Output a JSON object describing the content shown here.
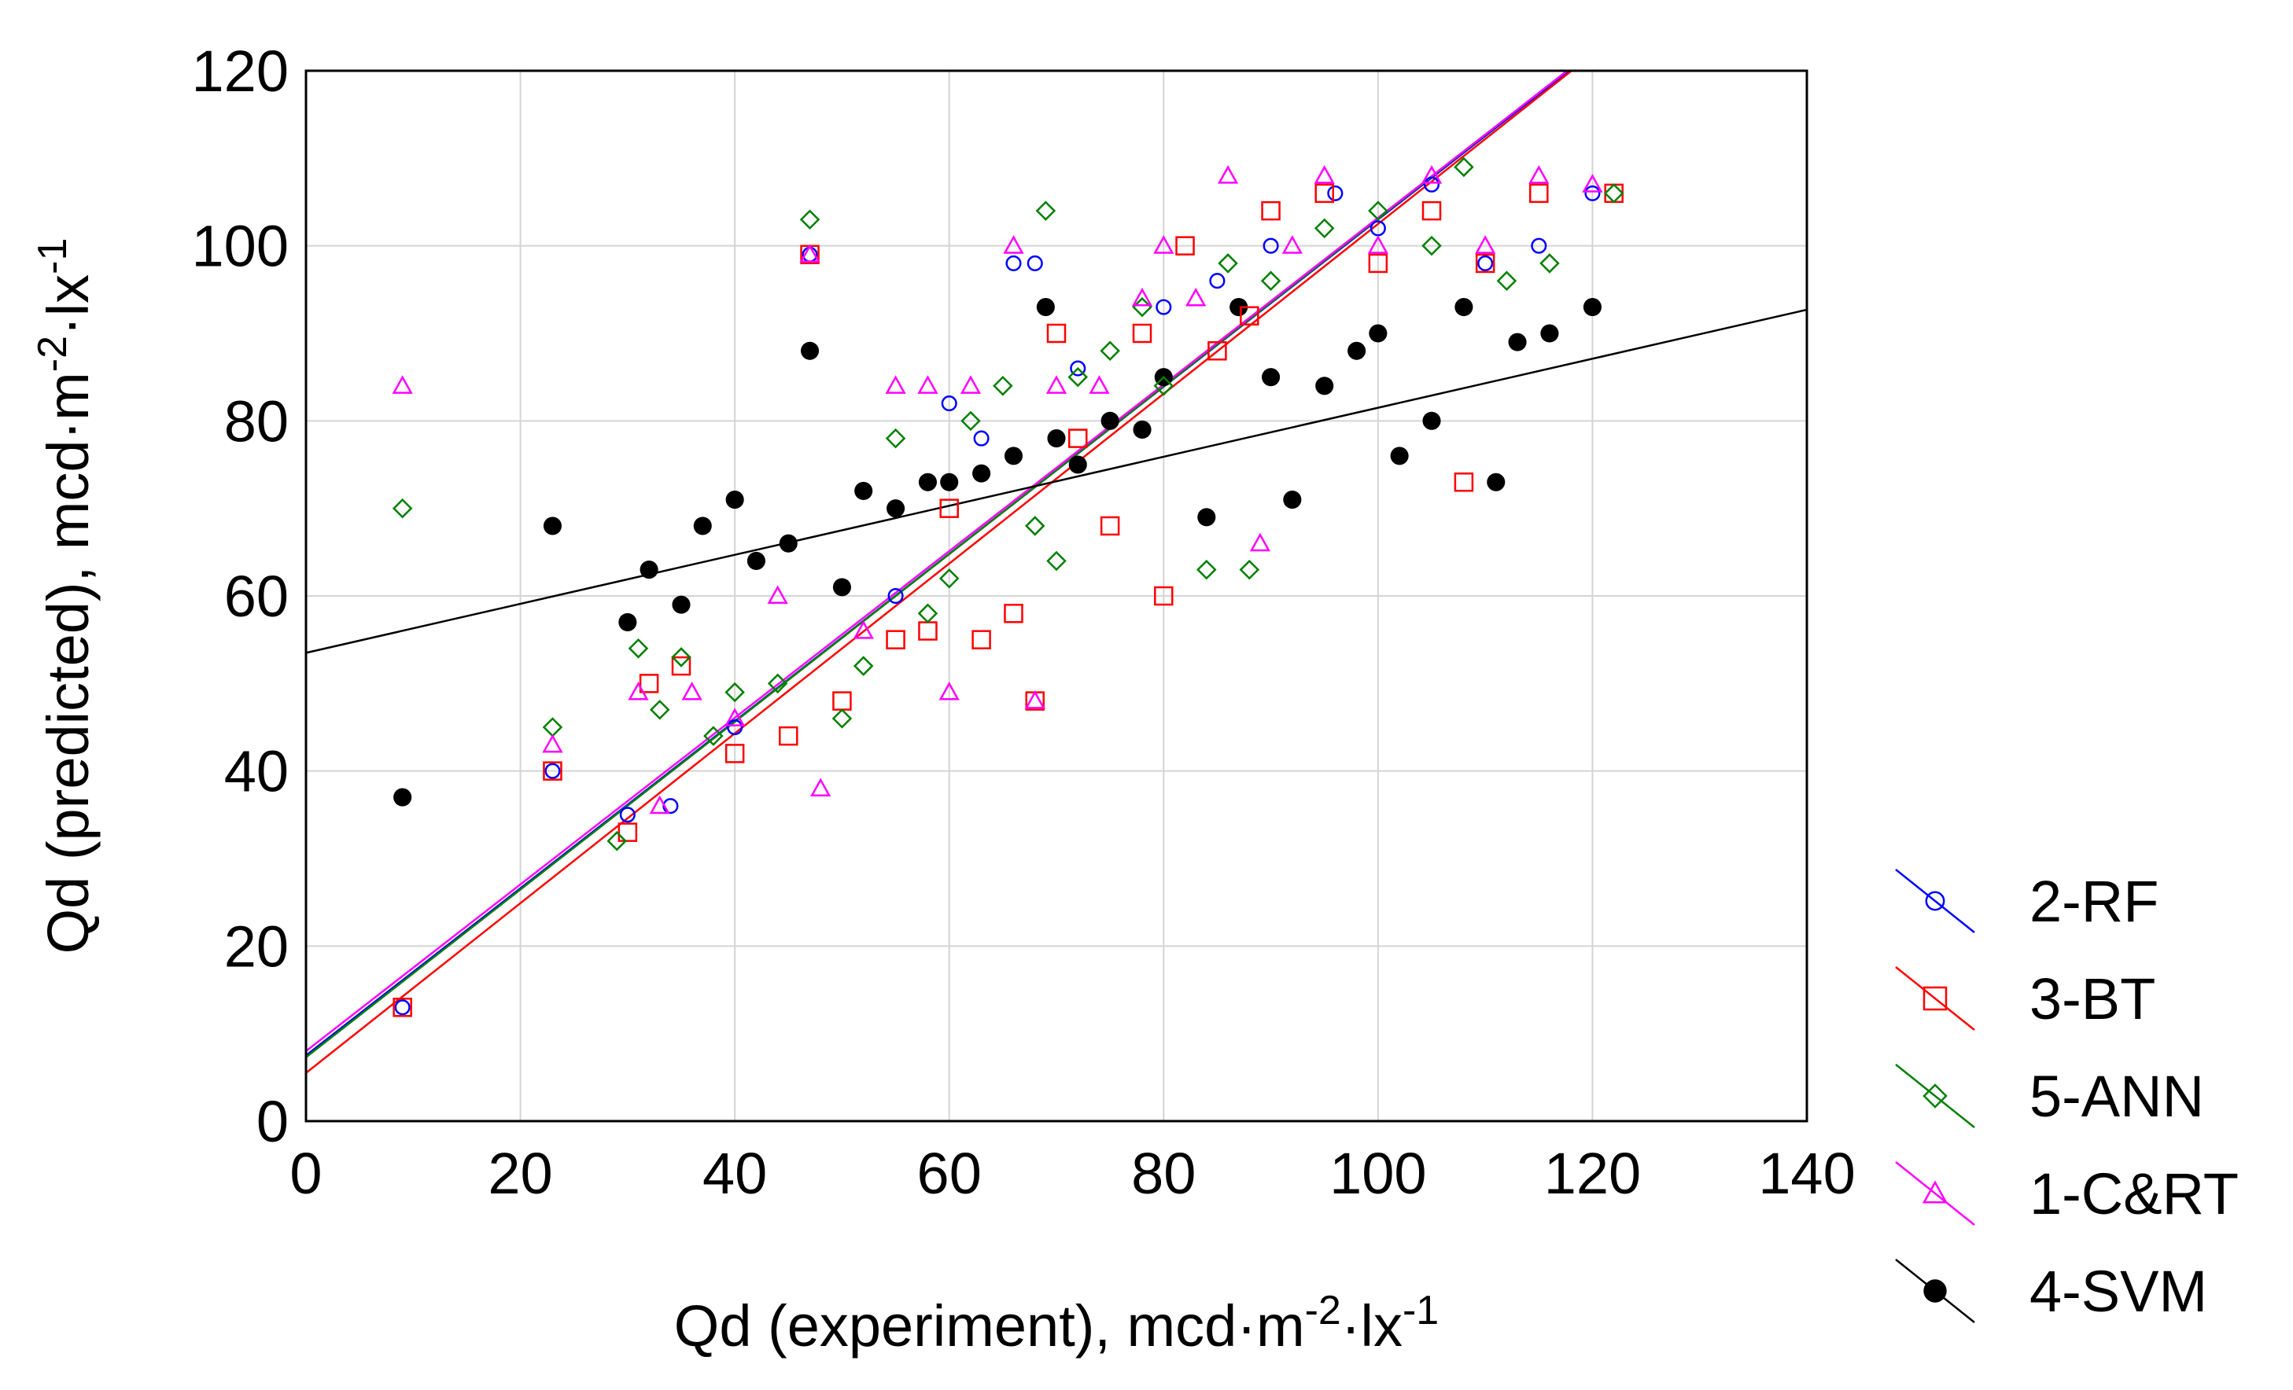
{
  "chart_data": {
    "type": "scatter",
    "xlabel": {
      "main": "Qd (experiment), mcd·m",
      "exp1": "-2",
      "mid": "·lx",
      "exp2": "-1"
    },
    "ylabel": {
      "main": "Qd (predicted), mcd·m",
      "exp1": "-2",
      "mid": "·lx",
      "exp2": "-1"
    },
    "xlim": [
      0,
      140
    ],
    "ylim": [
      0,
      120
    ],
    "xticks": [
      0,
      20,
      40,
      60,
      80,
      100,
      120,
      140
    ],
    "yticks": [
      0,
      20,
      40,
      60,
      80,
      100,
      120
    ],
    "grid": true,
    "legend_position": "right-bottom",
    "series": [
      {
        "name": "2-RF",
        "color": "#0000ff",
        "marker": "circle",
        "fit": {
          "intercept": 7.5,
          "slope": 0.955
        }
      },
      {
        "name": "3-BT",
        "color": "#ff0000",
        "marker": "square",
        "fit": {
          "intercept": 5.5,
          "slope": 0.97
        }
      },
      {
        "name": "5-ANN",
        "color": "#008000",
        "marker": "diamond",
        "fit": {
          "intercept": 7.3,
          "slope": 0.958
        }
      },
      {
        "name": "1-C&RT",
        "color": "#ff00ff",
        "marker": "triangle",
        "fit": {
          "intercept": 8.0,
          "slope": 0.952
        }
      },
      {
        "name": "4-SVM",
        "color": "#000000",
        "marker": "filled-circle",
        "fit": {
          "intercept": 53.5,
          "slope": 0.28
        }
      }
    ],
    "points": {
      "2-RF": [
        [
          9,
          13
        ],
        [
          23,
          40
        ],
        [
          30,
          35
        ],
        [
          34,
          36
        ],
        [
          40,
          45
        ],
        [
          47,
          99
        ],
        [
          55,
          60
        ],
        [
          60,
          82
        ],
        [
          63,
          78
        ],
        [
          66,
          98
        ],
        [
          68,
          98
        ],
        [
          72,
          86
        ],
        [
          80,
          93
        ],
        [
          85,
          96
        ],
        [
          90,
          100
        ],
        [
          96,
          106
        ],
        [
          100,
          102
        ],
        [
          105,
          107
        ],
        [
          110,
          98
        ],
        [
          115,
          100
        ],
        [
          120,
          106
        ]
      ],
      "3-BT": [
        [
          9,
          13
        ],
        [
          23,
          40
        ],
        [
          30,
          33
        ],
        [
          32,
          50
        ],
        [
          35,
          52
        ],
        [
          40,
          42
        ],
        [
          45,
          44
        ],
        [
          47,
          99
        ],
        [
          50,
          48
        ],
        [
          55,
          55
        ],
        [
          58,
          56
        ],
        [
          60,
          70
        ],
        [
          63,
          55
        ],
        [
          66,
          58
        ],
        [
          68,
          48
        ],
        [
          70,
          90
        ],
        [
          72,
          78
        ],
        [
          75,
          68
        ],
        [
          78,
          90
        ],
        [
          80,
          60
        ],
        [
          82,
          100
        ],
        [
          85,
          88
        ],
        [
          88,
          92
        ],
        [
          90,
          104
        ],
        [
          95,
          106
        ],
        [
          100,
          98
        ],
        [
          105,
          104
        ],
        [
          108,
          73
        ],
        [
          110,
          98
        ],
        [
          115,
          106
        ],
        [
          122,
          106
        ]
      ],
      "5-ANN": [
        [
          9,
          70
        ],
        [
          23,
          45
        ],
        [
          29,
          32
        ],
        [
          31,
          54
        ],
        [
          33,
          47
        ],
        [
          35,
          53
        ],
        [
          38,
          44
        ],
        [
          40,
          49
        ],
        [
          44,
          50
        ],
        [
          47,
          103
        ],
        [
          50,
          46
        ],
        [
          52,
          52
        ],
        [
          55,
          78
        ],
        [
          58,
          58
        ],
        [
          60,
          62
        ],
        [
          62,
          80
        ],
        [
          65,
          84
        ],
        [
          68,
          68
        ],
        [
          69,
          104
        ],
        [
          70,
          64
        ],
        [
          72,
          85
        ],
        [
          75,
          88
        ],
        [
          78,
          93
        ],
        [
          80,
          84
        ],
        [
          84,
          63
        ],
        [
          86,
          98
        ],
        [
          88,
          63
        ],
        [
          90,
          96
        ],
        [
          95,
          102
        ],
        [
          100,
          104
        ],
        [
          105,
          100
        ],
        [
          108,
          109
        ],
        [
          112,
          96
        ],
        [
          116,
          98
        ],
        [
          122,
          106
        ]
      ],
      "1-C&RT": [
        [
          9,
          84
        ],
        [
          23,
          43
        ],
        [
          31,
          49
        ],
        [
          33,
          36
        ],
        [
          36,
          49
        ],
        [
          40,
          46
        ],
        [
          44,
          60
        ],
        [
          47,
          99
        ],
        [
          48,
          38
        ],
        [
          52,
          56
        ],
        [
          55,
          84
        ],
        [
          58,
          84
        ],
        [
          60,
          49
        ],
        [
          62,
          84
        ],
        [
          66,
          100
        ],
        [
          68,
          48
        ],
        [
          70,
          84
        ],
        [
          74,
          84
        ],
        [
          78,
          94
        ],
        [
          80,
          100
        ],
        [
          83,
          94
        ],
        [
          86,
          108
        ],
        [
          89,
          66
        ],
        [
          92,
          100
        ],
        [
          95,
          108
        ],
        [
          100,
          100
        ],
        [
          105,
          108
        ],
        [
          110,
          100
        ],
        [
          115,
          108
        ],
        [
          120,
          107
        ]
      ],
      "4-SVM": [
        [
          9,
          37
        ],
        [
          23,
          68
        ],
        [
          30,
          57
        ],
        [
          32,
          63
        ],
        [
          35,
          59
        ],
        [
          37,
          68
        ],
        [
          40,
          71
        ],
        [
          42,
          64
        ],
        [
          45,
          66
        ],
        [
          47,
          88
        ],
        [
          50,
          61
        ],
        [
          52,
          72
        ],
        [
          55,
          70
        ],
        [
          58,
          73
        ],
        [
          60,
          73
        ],
        [
          63,
          74
        ],
        [
          66,
          76
        ],
        [
          69,
          93
        ],
        [
          70,
          78
        ],
        [
          72,
          75
        ],
        [
          75,
          80
        ],
        [
          78,
          79
        ],
        [
          80,
          85
        ],
        [
          84,
          69
        ],
        [
          87,
          93
        ],
        [
          90,
          85
        ],
        [
          92,
          71
        ],
        [
          95,
          84
        ],
        [
          98,
          88
        ],
        [
          100,
          90
        ],
        [
          102,
          76
        ],
        [
          105,
          80
        ],
        [
          108,
          93
        ],
        [
          111,
          73
        ],
        [
          113,
          89
        ],
        [
          116,
          90
        ],
        [
          120,
          93
        ]
      ]
    }
  }
}
